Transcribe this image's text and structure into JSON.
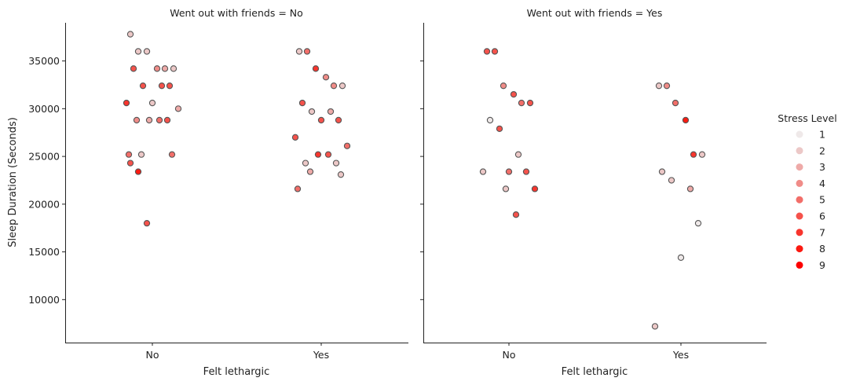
{
  "colors": {
    "stress_palette": [
      "#efe9e9",
      "#ecc8c7",
      "#eeaaa8",
      "#f08c88",
      "#f26e69",
      "#f5524b",
      "#f8352d",
      "#fb1a11",
      "#fd0000"
    ],
    "marker_edge": "#555555",
    "axis": "#222222"
  },
  "ylabel": "Sleep Duration (Seconds)",
  "legend": {
    "title": "Stress Level",
    "placement": "right",
    "levels": [
      "1",
      "2",
      "3",
      "4",
      "5",
      "6",
      "7",
      "8",
      "9"
    ]
  },
  "chart_data": [
    {
      "type": "scatter",
      "title": "Went out with friends = No",
      "xlabel": "Felt lethargic",
      "ylabel": "Sleep Duration (Seconds)",
      "categories": [
        "No",
        "Yes"
      ],
      "yticks": [
        10000,
        15000,
        20000,
        25000,
        30000,
        35000
      ],
      "ylim": [
        5500,
        39000
      ],
      "grid": false,
      "points": [
        {
          "x": "No",
          "y": 37800,
          "stress": 2
        },
        {
          "x": "No",
          "y": 36000,
          "stress": 2
        },
        {
          "x": "No",
          "y": 36000,
          "stress": 2
        },
        {
          "x": "No",
          "y": 34200,
          "stress": 4
        },
        {
          "x": "No",
          "y": 34200,
          "stress": 3
        },
        {
          "x": "No",
          "y": 34200,
          "stress": 2
        },
        {
          "x": "No",
          "y": 34200,
          "stress": 6
        },
        {
          "x": "No",
          "y": 32400,
          "stress": 6
        },
        {
          "x": "No",
          "y": 32400,
          "stress": 6
        },
        {
          "x": "No",
          "y": 32400,
          "stress": 6
        },
        {
          "x": "No",
          "y": 30600,
          "stress": 2
        },
        {
          "x": "No",
          "y": 30600,
          "stress": 7
        },
        {
          "x": "No",
          "y": 30000,
          "stress": 3
        },
        {
          "x": "No",
          "y": 28800,
          "stress": 3
        },
        {
          "x": "No",
          "y": 28800,
          "stress": 5
        },
        {
          "x": "No",
          "y": 28800,
          "stress": 4
        },
        {
          "x": "No",
          "y": 28800,
          "stress": 6
        },
        {
          "x": "No",
          "y": 25200,
          "stress": 2
        },
        {
          "x": "No",
          "y": 25200,
          "stress": 5
        },
        {
          "x": "No",
          "y": 25200,
          "stress": 5
        },
        {
          "x": "No",
          "y": 24300,
          "stress": 6
        },
        {
          "x": "No",
          "y": 23400,
          "stress": 8
        },
        {
          "x": "No",
          "y": 18000,
          "stress": 6
        },
        {
          "x": "Yes",
          "y": 36000,
          "stress": 2
        },
        {
          "x": "Yes",
          "y": 36000,
          "stress": 5
        },
        {
          "x": "Yes",
          "y": 34200,
          "stress": 7
        },
        {
          "x": "Yes",
          "y": 33300,
          "stress": 4
        },
        {
          "x": "Yes",
          "y": 32400,
          "stress": 4
        },
        {
          "x": "Yes",
          "y": 32400,
          "stress": 2
        },
        {
          "x": "Yes",
          "y": 30600,
          "stress": 6
        },
        {
          "x": "Yes",
          "y": 29700,
          "stress": 2
        },
        {
          "x": "Yes",
          "y": 29700,
          "stress": 3
        },
        {
          "x": "Yes",
          "y": 28800,
          "stress": 6
        },
        {
          "x": "Yes",
          "y": 28800,
          "stress": 6
        },
        {
          "x": "Yes",
          "y": 27000,
          "stress": 6
        },
        {
          "x": "Yes",
          "y": 26100,
          "stress": 5
        },
        {
          "x": "Yes",
          "y": 25200,
          "stress": 7
        },
        {
          "x": "Yes",
          "y": 25200,
          "stress": 6
        },
        {
          "x": "Yes",
          "y": 24300,
          "stress": 2
        },
        {
          "x": "Yes",
          "y": 24300,
          "stress": 2
        },
        {
          "x": "Yes",
          "y": 23400,
          "stress": 3
        },
        {
          "x": "Yes",
          "y": 23100,
          "stress": 2
        },
        {
          "x": "Yes",
          "y": 21600,
          "stress": 5
        }
      ]
    },
    {
      "type": "scatter",
      "title": "Went out with friends = Yes",
      "xlabel": "Felt lethargic",
      "ylabel": "",
      "categories": [
        "No",
        "Yes"
      ],
      "yticks": [
        10000,
        15000,
        20000,
        25000,
        30000,
        35000
      ],
      "ylim": [
        5500,
        39000
      ],
      "grid": false,
      "points": [
        {
          "x": "No",
          "y": 36000,
          "stress": 6
        },
        {
          "x": "No",
          "y": 36000,
          "stress": 6
        },
        {
          "x": "No",
          "y": 32400,
          "stress": 4
        },
        {
          "x": "No",
          "y": 31500,
          "stress": 6
        },
        {
          "x": "No",
          "y": 30600,
          "stress": 5
        },
        {
          "x": "No",
          "y": 30600,
          "stress": 6
        },
        {
          "x": "No",
          "y": 28800,
          "stress": 1
        },
        {
          "x": "No",
          "y": 27900,
          "stress": 6
        },
        {
          "x": "No",
          "y": 25200,
          "stress": 2
        },
        {
          "x": "No",
          "y": 23400,
          "stress": 6
        },
        {
          "x": "No",
          "y": 23400,
          "stress": 5
        },
        {
          "x": "No",
          "y": 23400,
          "stress": 2
        },
        {
          "x": "No",
          "y": 21600,
          "stress": 7
        },
        {
          "x": "No",
          "y": 21600,
          "stress": 2
        },
        {
          "x": "No",
          "y": 18900,
          "stress": 6
        },
        {
          "x": "Yes",
          "y": 32400,
          "stress": 2
        },
        {
          "x": "Yes",
          "y": 32400,
          "stress": 4
        },
        {
          "x": "Yes",
          "y": 30600,
          "stress": 5
        },
        {
          "x": "Yes",
          "y": 28800,
          "stress": 8
        },
        {
          "x": "Yes",
          "y": 25200,
          "stress": 7
        },
        {
          "x": "Yes",
          "y": 25200,
          "stress": 2
        },
        {
          "x": "Yes",
          "y": 23400,
          "stress": 2
        },
        {
          "x": "Yes",
          "y": 22500,
          "stress": 2
        },
        {
          "x": "Yes",
          "y": 21600,
          "stress": 3
        },
        {
          "x": "Yes",
          "y": 18000,
          "stress": 1
        },
        {
          "x": "Yes",
          "y": 14400,
          "stress": 1
        },
        {
          "x": "Yes",
          "y": 7200,
          "stress": 2
        }
      ]
    }
  ]
}
